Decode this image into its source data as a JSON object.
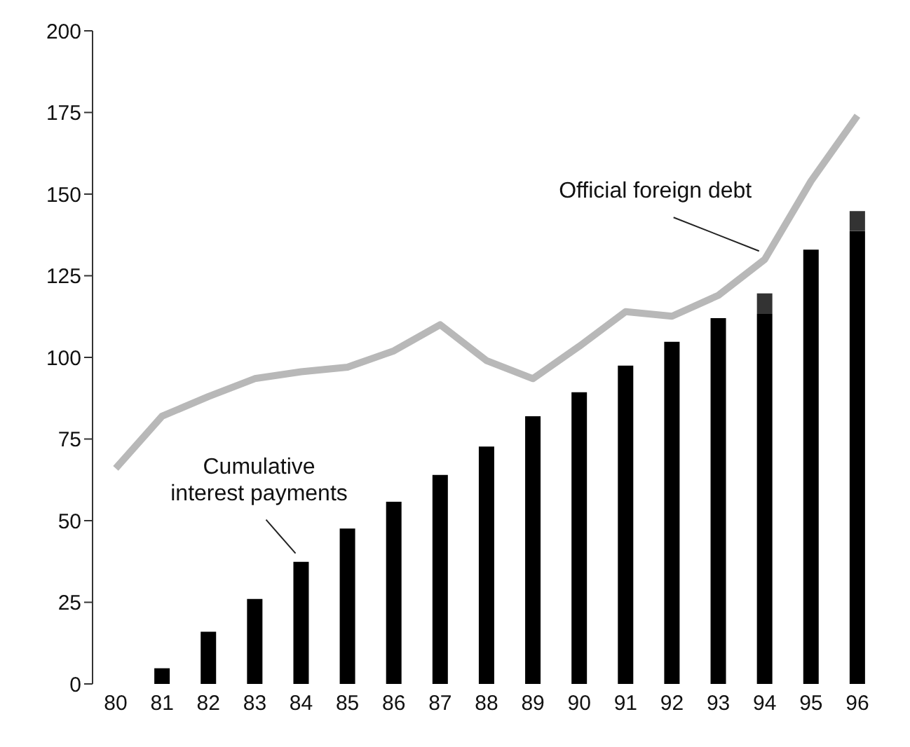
{
  "chart_data": {
    "type": "bar",
    "stacked": true,
    "categories": [
      "80",
      "81",
      "82",
      "83",
      "84",
      "85",
      "86",
      "87",
      "88",
      "89",
      "90",
      "91",
      "92",
      "93",
      "94",
      "95",
      "96"
    ],
    "series": [
      {
        "color": "#000000",
        "values": [
          null,
          4.8,
          16,
          26,
          37.4,
          47.6,
          55.8,
          64,
          72.7,
          82,
          89.3,
          97.5,
          104.8,
          112,
          113.3,
          133,
          138.7
        ]
      },
      {
        "color": "#333333",
        "values": [
          null,
          null,
          null,
          null,
          null,
          null,
          null,
          null,
          null,
          null,
          null,
          null,
          null,
          null,
          6.3,
          null,
          6.1
        ]
      },
      {
        "type": "line",
        "color": "#b8b8b8",
        "values": [
          66,
          82,
          88,
          93.5,
          95.6,
          97,
          102,
          110,
          99,
          93.5,
          103.4,
          114,
          112.6,
          119,
          130,
          154,
          174
        ]
      }
    ],
    "ylim": [
      0,
      200
    ],
    "yticks": [
      0,
      25,
      50,
      75,
      100,
      125,
      150,
      175,
      200
    ],
    "grid": false,
    "legend": false,
    "marker": "none",
    "line_style": "solid",
    "annotations": [
      {
        "text": "Cumulative\ninterest payments",
        "x": "84",
        "y": 37.4
      },
      {
        "text": "Official foreign debt",
        "x": "94",
        "y": 130
      }
    ]
  }
}
